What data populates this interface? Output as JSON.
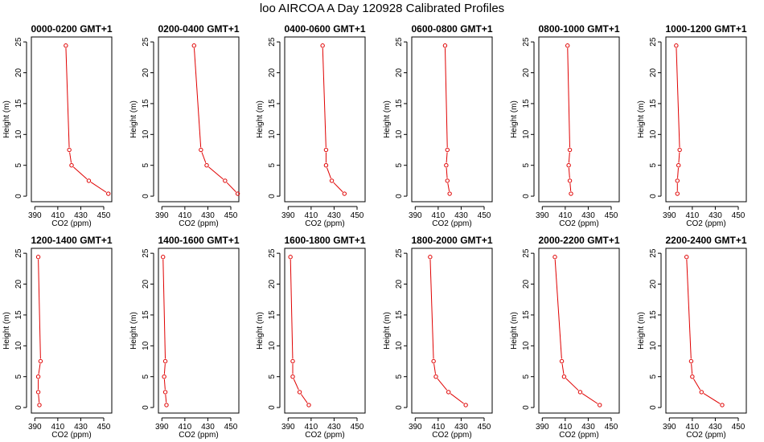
{
  "title": "loo AIRCOA A  Day 120928  Calibrated Profiles",
  "colors": {
    "profile_line": "#e00000",
    "axis": "#000000",
    "background": "#ffffff"
  },
  "chart_data": [
    {
      "type": "line",
      "title": "0000-0200 GMT+1",
      "xlabel": "CO2 (ppm)",
      "ylabel": "Height (m)",
      "xlim": [
        387,
        457
      ],
      "ylim": [
        -0.9,
        25.8
      ],
      "xticks": [
        390,
        410,
        430,
        450
      ],
      "yticks": [
        0,
        5,
        10,
        15,
        20,
        25
      ],
      "points": [
        {
          "x": 417,
          "y": 24.4
        },
        {
          "x": 420,
          "y": 7.5
        },
        {
          "x": 422,
          "y": 5
        },
        {
          "x": 437,
          "y": 2.5
        },
        {
          "x": 454,
          "y": 0.4
        }
      ]
    },
    {
      "type": "line",
      "title": "0200-0400 GMT+1",
      "xlabel": "CO2 (ppm)",
      "ylabel": "Height (m)",
      "xlim": [
        387,
        457
      ],
      "ylim": [
        -0.9,
        25.8
      ],
      "xticks": [
        390,
        410,
        430,
        450
      ],
      "yticks": [
        0,
        5,
        10,
        15,
        20,
        25
      ],
      "points": [
        {
          "x": 418,
          "y": 24.4
        },
        {
          "x": 424,
          "y": 7.5
        },
        {
          "x": 429,
          "y": 5
        },
        {
          "x": 445,
          "y": 2.5
        },
        {
          "x": 456,
          "y": 0.4
        }
      ]
    },
    {
      "type": "line",
      "title": "0400-0600 GMT+1",
      "xlabel": "CO2 (ppm)",
      "ylabel": "Height (m)",
      "xlim": [
        387,
        457
      ],
      "ylim": [
        -0.9,
        25.8
      ],
      "xticks": [
        390,
        410,
        430,
        450
      ],
      "yticks": [
        0,
        5,
        10,
        15,
        20,
        25
      ],
      "points": [
        {
          "x": 420,
          "y": 24.4
        },
        {
          "x": 423,
          "y": 7.5
        },
        {
          "x": 423,
          "y": 5
        },
        {
          "x": 428,
          "y": 2.5
        },
        {
          "x": 439,
          "y": 0.4
        }
      ]
    },
    {
      "type": "line",
      "title": "0600-0800 GMT+1",
      "xlabel": "CO2 (ppm)",
      "ylabel": "Height (m)",
      "xlim": [
        387,
        457
      ],
      "ylim": [
        -0.9,
        25.8
      ],
      "xticks": [
        390,
        410,
        430,
        450
      ],
      "yticks": [
        0,
        5,
        10,
        15,
        20,
        25
      ],
      "points": [
        {
          "x": 416,
          "y": 24.4
        },
        {
          "x": 418,
          "y": 7.5
        },
        {
          "x": 417,
          "y": 5
        },
        {
          "x": 418,
          "y": 2.5
        },
        {
          "x": 420,
          "y": 0.4
        }
      ]
    },
    {
      "type": "line",
      "title": "0800-1000 GMT+1",
      "xlabel": "CO2 (ppm)",
      "ylabel": "Height (m)",
      "xlim": [
        387,
        457
      ],
      "ylim": [
        -0.9,
        25.8
      ],
      "xticks": [
        390,
        410,
        430,
        450
      ],
      "yticks": [
        0,
        5,
        10,
        15,
        20,
        25
      ],
      "points": [
        {
          "x": 412,
          "y": 24.4
        },
        {
          "x": 414,
          "y": 7.5
        },
        {
          "x": 413,
          "y": 5
        },
        {
          "x": 414,
          "y": 2.5
        },
        {
          "x": 415,
          "y": 0.4
        }
      ]
    },
    {
      "type": "line",
      "title": "1000-1200 GMT+1",
      "xlabel": "CO2 (ppm)",
      "ylabel": "Height (m)",
      "xlim": [
        387,
        457
      ],
      "ylim": [
        -0.9,
        25.8
      ],
      "xticks": [
        390,
        410,
        430,
        450
      ],
      "yticks": [
        0,
        5,
        10,
        15,
        20,
        25
      ],
      "points": [
        {
          "x": 396,
          "y": 24.4
        },
        {
          "x": 399,
          "y": 7.5
        },
        {
          "x": 398,
          "y": 5
        },
        {
          "x": 397,
          "y": 2.5
        },
        {
          "x": 397,
          "y": 0.4
        }
      ]
    },
    {
      "type": "line",
      "title": "1200-1400 GMT+1",
      "xlabel": "CO2 (ppm)",
      "ylabel": "Height (m)",
      "xlim": [
        387,
        457
      ],
      "ylim": [
        -0.9,
        25.8
      ],
      "xticks": [
        390,
        410,
        430,
        450
      ],
      "yticks": [
        0,
        5,
        10,
        15,
        20,
        25
      ],
      "points": [
        {
          "x": 393,
          "y": 24.4
        },
        {
          "x": 395,
          "y": 7.5
        },
        {
          "x": 393,
          "y": 5
        },
        {
          "x": 393,
          "y": 2.5
        },
        {
          "x": 394,
          "y": 0.4
        }
      ]
    },
    {
      "type": "line",
      "title": "1400-1600 GMT+1",
      "xlabel": "CO2 (ppm)",
      "ylabel": "Height (m)",
      "xlim": [
        387,
        457
      ],
      "ylim": [
        -0.9,
        25.8
      ],
      "xticks": [
        390,
        410,
        430,
        450
      ],
      "yticks": [
        0,
        5,
        10,
        15,
        20,
        25
      ],
      "points": [
        {
          "x": 391,
          "y": 24.4
        },
        {
          "x": 393,
          "y": 7.5
        },
        {
          "x": 392,
          "y": 5
        },
        {
          "x": 393,
          "y": 2.5
        },
        {
          "x": 394,
          "y": 0.4
        }
      ]
    },
    {
      "type": "line",
      "title": "1600-1800 GMT+1",
      "xlabel": "CO2 (ppm)",
      "ylabel": "Height (m)",
      "xlim": [
        387,
        457
      ],
      "ylim": [
        -0.9,
        25.8
      ],
      "xticks": [
        390,
        410,
        430,
        450
      ],
      "yticks": [
        0,
        5,
        10,
        15,
        20,
        25
      ],
      "points": [
        {
          "x": 392,
          "y": 24.4
        },
        {
          "x": 394,
          "y": 7.5
        },
        {
          "x": 394,
          "y": 5
        },
        {
          "x": 400,
          "y": 2.5
        },
        {
          "x": 408,
          "y": 0.4
        }
      ]
    },
    {
      "type": "line",
      "title": "1800-2000 GMT+1",
      "xlabel": "CO2 (ppm)",
      "ylabel": "Height (m)",
      "xlim": [
        387,
        457
      ],
      "ylim": [
        -0.9,
        25.8
      ],
      "xticks": [
        390,
        410,
        430,
        450
      ],
      "yticks": [
        0,
        5,
        10,
        15,
        20,
        25
      ],
      "points": [
        {
          "x": 403,
          "y": 24.4
        },
        {
          "x": 406,
          "y": 7.5
        },
        {
          "x": 408,
          "y": 5
        },
        {
          "x": 419,
          "y": 2.5
        },
        {
          "x": 434,
          "y": 0.4
        }
      ]
    },
    {
      "type": "line",
      "title": "2000-2200 GMT+1",
      "xlabel": "CO2 (ppm)",
      "ylabel": "Height (m)",
      "xlim": [
        387,
        457
      ],
      "ylim": [
        -0.9,
        25.8
      ],
      "xticks": [
        390,
        410,
        430,
        450
      ],
      "yticks": [
        0,
        5,
        10,
        15,
        20,
        25
      ],
      "points": [
        {
          "x": 401,
          "y": 24.4
        },
        {
          "x": 407,
          "y": 7.5
        },
        {
          "x": 409,
          "y": 5
        },
        {
          "x": 423,
          "y": 2.5
        },
        {
          "x": 440,
          "y": 0.4
        }
      ]
    },
    {
      "type": "line",
      "title": "2200-2400 GMT+1",
      "xlabel": "CO2 (ppm)",
      "ylabel": "Height (m)",
      "xlim": [
        387,
        457
      ],
      "ylim": [
        -0.9,
        25.8
      ],
      "xticks": [
        390,
        410,
        430,
        450
      ],
      "yticks": [
        0,
        5,
        10,
        15,
        20,
        25
      ],
      "points": [
        {
          "x": 405,
          "y": 24.4
        },
        {
          "x": 409,
          "y": 7.5
        },
        {
          "x": 410,
          "y": 5
        },
        {
          "x": 418,
          "y": 2.5
        },
        {
          "x": 436,
          "y": 0.4
        }
      ]
    }
  ]
}
